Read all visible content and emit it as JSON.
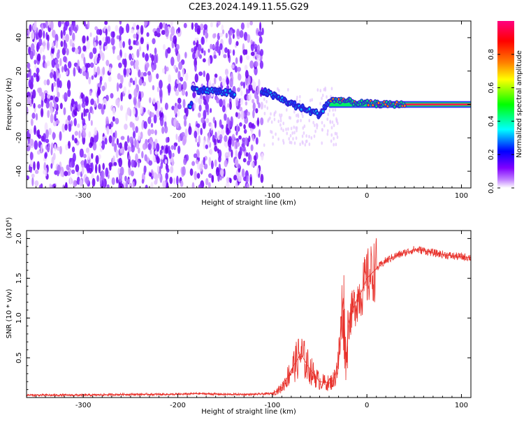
{
  "title": "C2E3.2024.149.11.55.G29",
  "chart_data": [
    {
      "type": "heatmap",
      "xlabel": "Height of straight line (km)",
      "ylabel": "Frequency (Hz)",
      "xlim": [
        -360,
        110
      ],
      "ylim": [
        -50,
        50
      ],
      "x_ticks": [
        -300,
        -200,
        -100,
        0,
        100
      ],
      "y_ticks": [
        -40,
        -20,
        0,
        20,
        40
      ],
      "colorbar": {
        "label": "Normalized spectral amplitude",
        "range": [
          0,
          1
        ],
        "ticks": [
          "0.0",
          "0.2",
          "0.4",
          "0.6",
          "0.8"
        ],
        "colors": [
          "#ffffff",
          "#8000ff",
          "#0000ff",
          "#00ffff",
          "#00ff00",
          "#ffff00",
          "#ff8000",
          "#ff0000",
          "#ff0080"
        ]
      },
      "signal_track": [
        {
          "x": -185,
          "y": 9
        },
        {
          "x": -160,
          "y": 8
        },
        {
          "x": -140,
          "y": 6
        },
        {
          "x": -110,
          "y": 8
        },
        {
          "x": -90,
          "y": 3
        },
        {
          "x": -70,
          "y": -2
        },
        {
          "x": -50,
          "y": -6
        },
        {
          "x": -40,
          "y": 2
        },
        {
          "x": -30,
          "y": 3
        },
        {
          "x": -10,
          "y": 1
        },
        {
          "x": 20,
          "y": 0
        },
        {
          "x": 110,
          "y": 0
        }
      ]
    },
    {
      "type": "line",
      "xlabel": "Height of straight line (km)",
      "ylabel": "SNR (10 * v/v)",
      "multiplier": "(x10⁴)",
      "xlim": [
        -360,
        110
      ],
      "ylim": [
        0,
        2.1
      ],
      "x_ticks": [
        -300,
        -200,
        -100,
        0,
        100
      ],
      "y_ticks": [
        "0.5",
        "1.0",
        "1.5",
        "2.0"
      ],
      "series": [
        {
          "color": "#e8302a",
          "x": [
            -360,
            -300,
            -250,
            -200,
            -180,
            -150,
            -120,
            -100,
            -90,
            -80,
            -70,
            -60,
            -50,
            -40,
            -35,
            -30,
            -25,
            -22,
            -20,
            -18,
            -15,
            -10,
            -5,
            0,
            10,
            20,
            30,
            40,
            50,
            60,
            70,
            80,
            90,
            100,
            110
          ],
          "y": [
            0.03,
            0.03,
            0.04,
            0.04,
            0.05,
            0.04,
            0.04,
            0.05,
            0.12,
            0.35,
            0.55,
            0.35,
            0.2,
            0.18,
            0.22,
            0.45,
            1.25,
            0.4,
            0.9,
            1.0,
            1.1,
            1.25,
            1.35,
            1.5,
            1.62,
            1.72,
            1.78,
            1.82,
            1.86,
            1.85,
            1.82,
            1.8,
            1.78,
            1.77,
            1.76
          ]
        }
      ]
    }
  ]
}
